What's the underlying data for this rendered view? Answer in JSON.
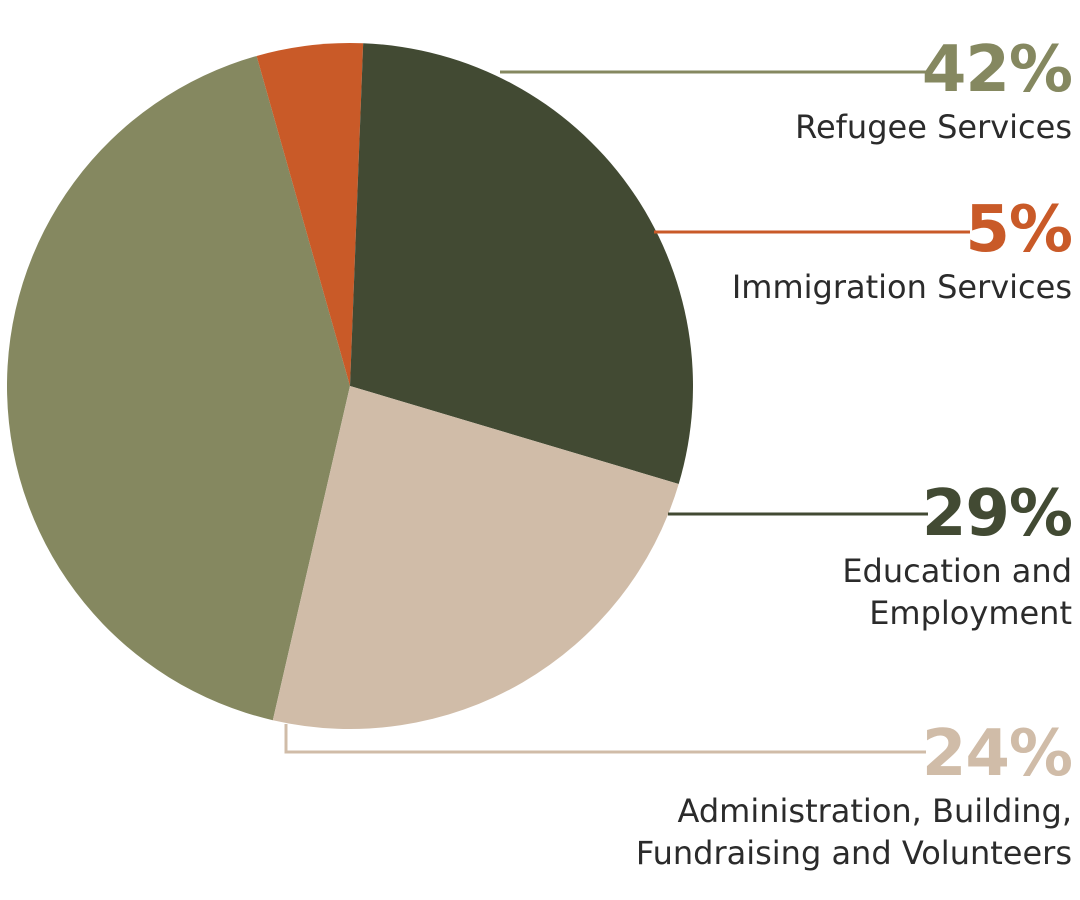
{
  "chart_data": {
    "type": "pie",
    "title": "",
    "slices": [
      {
        "name": "Refugee Services",
        "value": 42,
        "value_label": "42%",
        "label_lines": [
          "Refugee Services"
        ],
        "color": "#858860"
      },
      {
        "name": "Immigration Services",
        "value": 5,
        "value_label": "5%",
        "label_lines": [
          "Immigration Services"
        ],
        "color": "#c95a28"
      },
      {
        "name": "Education and Employment",
        "value": 29,
        "value_label": "29%",
        "label_lines": [
          "Education and",
          "Employment"
        ],
        "color": "#424a33"
      },
      {
        "name": "Administration, Building, Fundraising and Volunteers",
        "value": 24,
        "value_label": "24%",
        "label_lines": [
          "Administration, Building,",
          "Fundraising and Volunteers"
        ],
        "color": "#d0bca8"
      }
    ],
    "legend_placement": "right"
  }
}
